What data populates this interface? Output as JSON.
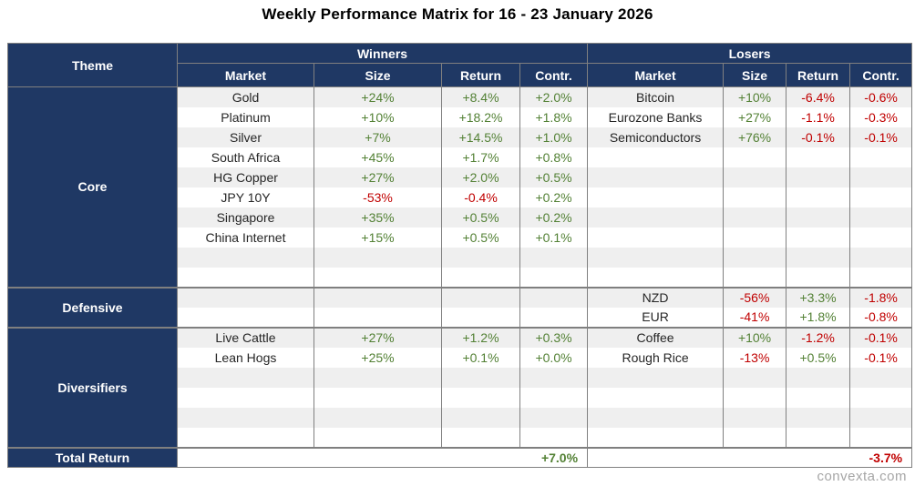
{
  "title": "Weekly Performance Matrix for 16 - 23 January 2026",
  "watermark": "convexta.com",
  "colors": {
    "header_navy": "#1F3864",
    "positive_green": "#538135",
    "negative_red": "#C00000",
    "row_band_gray": "#EFEFEF",
    "grid_gray": "#808080",
    "separator_gray": "#7F7F7F",
    "watermark_gray": "#A6A6A6"
  },
  "chart_data": {
    "type": "table",
    "title": "Weekly Performance Matrix for 16 - 23 January 2026",
    "theme_header": "Theme",
    "group_headers": [
      "Winners",
      "Losers"
    ],
    "sub_headers": [
      "Market",
      "Size",
      "Return",
      "Contr."
    ],
    "sections": [
      {
        "theme": "Core",
        "row_count": 10,
        "winners": [
          {
            "market": "Gold",
            "size": "+24%",
            "return": "+8.4%",
            "contr": "+2.0%"
          },
          {
            "market": "Platinum",
            "size": "+10%",
            "return": "+18.2%",
            "contr": "+1.8%"
          },
          {
            "market": "Silver",
            "size": "+7%",
            "return": "+14.5%",
            "contr": "+1.0%"
          },
          {
            "market": "South Africa",
            "size": "+45%",
            "return": "+1.7%",
            "contr": "+0.8%"
          },
          {
            "market": "HG Copper",
            "size": "+27%",
            "return": "+2.0%",
            "contr": "+0.5%"
          },
          {
            "market": "JPY 10Y",
            "size": "-53%",
            "return": "-0.4%",
            "contr": "+0.2%"
          },
          {
            "market": "Singapore",
            "size": "+35%",
            "return": "+0.5%",
            "contr": "+0.2%"
          },
          {
            "market": "China Internet",
            "size": "+15%",
            "return": "+0.5%",
            "contr": "+0.1%"
          }
        ],
        "losers": [
          {
            "market": "Bitcoin",
            "size": "+10%",
            "return": "-6.4%",
            "contr": "-0.6%"
          },
          {
            "market": "Eurozone Banks",
            "size": "+27%",
            "return": "-1.1%",
            "contr": "-0.3%"
          },
          {
            "market": "Semiconductors",
            "size": "+76%",
            "return": "-0.1%",
            "contr": "-0.1%"
          }
        ]
      },
      {
        "theme": "Defensive",
        "row_count": 2,
        "winners": [],
        "losers": [
          {
            "market": "NZD",
            "size": "-56%",
            "return": "+3.3%",
            "contr": "-1.8%"
          },
          {
            "market": "EUR",
            "size": "-41%",
            "return": "+1.8%",
            "contr": "-0.8%"
          }
        ]
      },
      {
        "theme": "Diversifiers",
        "row_count": 6,
        "winners": [
          {
            "market": "Live Cattle",
            "size": "+27%",
            "return": "+1.2%",
            "contr": "+0.3%"
          },
          {
            "market": "Lean Hogs",
            "size": "+25%",
            "return": "+0.1%",
            "contr": "+0.0%"
          }
        ],
        "losers": [
          {
            "market": "Coffee",
            "size": "+10%",
            "return": "-1.2%",
            "contr": "-0.1%"
          },
          {
            "market": "Rough Rice",
            "size": "-13%",
            "return": "+0.5%",
            "contr": "-0.1%"
          }
        ]
      }
    ],
    "total": {
      "label": "Total Return",
      "winners": "+7.0%",
      "losers": "-3.7%"
    }
  }
}
